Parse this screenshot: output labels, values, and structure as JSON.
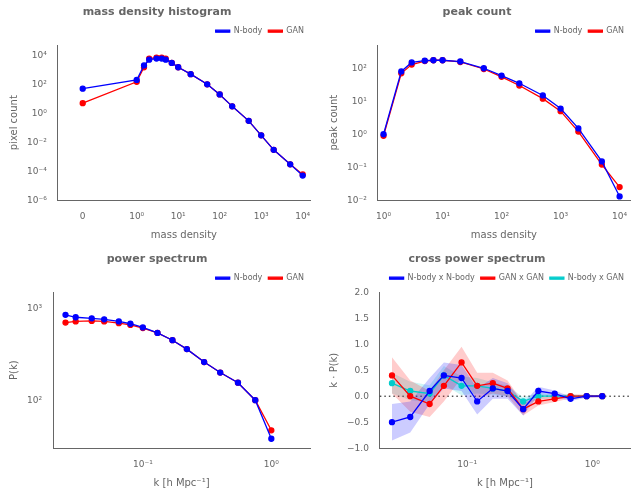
{
  "chart_data": [
    {
      "type": "line",
      "title": "mass density histogram",
      "x_label": "mass density",
      "y_label": "pixel count",
      "log": true,
      "grid": false,
      "legend": "upper right",
      "x": [
        0,
        1.0,
        1.5,
        2.0,
        3.0,
        4.0,
        5.0,
        7.0,
        10.0,
        20.0,
        50.0,
        100.0,
        200.0,
        500.0,
        1000.0,
        2000.0,
        5000.0,
        10000.0
      ],
      "series": [
        {
          "name": "N-body",
          "color": "#0000ff",
          "marker": "circle",
          "line_style": "solid",
          "values": [
            50.0,
            200.0,
            2000.0,
            5000.0,
            6000.0,
            6000.0,
            5000.0,
            3000.0,
            1500.0,
            500.0,
            100.0,
            20.0,
            3.0,
            0.3,
            0.03,
            0.003,
            0.0003,
            5e-05
          ]
        },
        {
          "name": "GAN",
          "color": "#ff0000",
          "marker": "circle",
          "line_style": "solid",
          "values": [
            5.0,
            150.0,
            1500.0,
            6000.0,
            7000.0,
            7000.0,
            6000.0,
            3000.0,
            1500.0,
            500.0,
            100.0,
            20.0,
            3.0,
            0.3,
            0.03,
            0.003,
            0.0003,
            6e-05
          ]
        }
      ],
      "xlim": [
        -0.3,
        15000
      ],
      "xticks": [
        {
          "value": 0,
          "label": "0"
        },
        {
          "value": 1,
          "label": "10⁰"
        },
        {
          "value": 10,
          "label": "10¹"
        },
        {
          "value": 100,
          "label": "10²"
        },
        {
          "value": 1000,
          "label": "10³"
        },
        {
          "value": 10000,
          "label": "10⁴"
        }
      ],
      "ylim": [
        1e-06,
        50000
      ],
      "yticks": [
        {
          "value": 1e-06,
          "label": "10⁻⁶"
        },
        {
          "value": 0.0001,
          "label": "10⁻⁴"
        },
        {
          "value": 0.01,
          "label": "10⁻²"
        },
        {
          "value": 1,
          "label": "10⁰"
        },
        {
          "value": 100,
          "label": "10²"
        },
        {
          "value": 10000,
          "label": "10⁴"
        }
      ]
    },
    {
      "type": "line",
      "title": "peak count",
      "x_label": "mass density",
      "y_label": "peak count",
      "log": true,
      "grid": false,
      "legend": "upper right",
      "x": [
        1.0,
        2.0,
        3.0,
        5.0,
        7.0,
        10.0,
        20.0,
        50.0,
        100.0,
        200.0,
        500.0,
        1000.0,
        2000.0,
        5000.0,
        10000.0
      ],
      "series": [
        {
          "name": "N-body",
          "color": "#0000ff",
          "marker": "circle",
          "line_style": "solid",
          "values": [
            1.0,
            80.0,
            150.0,
            170.0,
            175.0,
            175.0,
            160.0,
            100.0,
            60.0,
            35.0,
            15.0,
            6.0,
            1.5,
            0.15,
            0.013
          ]
        },
        {
          "name": "GAN",
          "color": "#ff0000",
          "marker": "circle",
          "line_style": "solid",
          "values": [
            0.9,
            70.0,
            130.0,
            165.0,
            175.0,
            175.0,
            155.0,
            95.0,
            55.0,
            30.0,
            12.0,
            5.0,
            1.2,
            0.12,
            0.025
          ]
        }
      ],
      "xlim": [
        0.8,
        15000
      ],
      "xticks": [
        {
          "value": 1,
          "label": "10⁰"
        },
        {
          "value": 10,
          "label": "10¹"
        },
        {
          "value": 100,
          "label": "10²"
        },
        {
          "value": 1000,
          "label": "10³"
        },
        {
          "value": 10000,
          "label": "10⁴"
        }
      ],
      "ylim": [
        0.01,
        500
      ],
      "yticks": [
        {
          "value": 0.01,
          "label": "10⁻²"
        },
        {
          "value": 0.1,
          "label": "10⁻¹"
        },
        {
          "value": 1,
          "label": "10⁰"
        },
        {
          "value": 10,
          "label": "10¹"
        },
        {
          "value": 100,
          "label": "10²"
        }
      ]
    },
    {
      "type": "line",
      "title": "power spectrum",
      "x_label": "k [h Mpc⁻¹]",
      "y_label": "P(k)",
      "log": true,
      "grid": false,
      "legend": "upper right",
      "x": [
        0.025,
        0.03,
        0.04,
        0.05,
        0.065,
        0.08,
        0.1,
        0.13,
        0.17,
        0.22,
        0.3,
        0.4,
        0.55,
        0.75,
        1.0
      ],
      "series": [
        {
          "name": "N-body",
          "color": "#0000ff",
          "marker": "circle",
          "line_style": "solid",
          "values": [
            850.0,
            800.0,
            780.0,
            760.0,
            720.0,
            680.0,
            620.0,
            540.0,
            450.0,
            360.0,
            260.0,
            200.0,
            155.0,
            100.0,
            38.0
          ]
        },
        {
          "name": "GAN",
          "color": "#ff0000",
          "marker": "circle",
          "line_style": "solid",
          "values": [
            700.0,
            720.0,
            730.0,
            720.0,
            690.0,
            660.0,
            610.0,
            540.0,
            450.0,
            360.0,
            260.0,
            200.0,
            155.0,
            100.0,
            47.0
          ]
        }
      ],
      "xlim": [
        0.02,
        2.0
      ],
      "xticks": [
        {
          "value": 0.1,
          "label": "10⁻¹"
        },
        {
          "value": 1,
          "label": "10⁰"
        }
      ],
      "ylim": [
        30,
        1500
      ],
      "yticks": [
        {
          "value": 100,
          "label": "10²"
        },
        {
          "value": 1000,
          "label": "10³"
        }
      ]
    },
    {
      "type": "line",
      "title": "cross power spectrum",
      "x_label": "k [h Mpc⁻¹]",
      "y_label": "k · P(k)",
      "log": "x",
      "grid": false,
      "legend": "upper right",
      "x": [
        0.025,
        0.035,
        0.05,
        0.065,
        0.09,
        0.12,
        0.16,
        0.21,
        0.28,
        0.37,
        0.5,
        0.67,
        0.9,
        1.2
      ],
      "series": [
        {
          "name": "N-body x N-body",
          "color": "#0000ff",
          "marker": "circle",
          "line_style": "solid",
          "values": [
            -0.5,
            -0.4,
            0.1,
            0.4,
            0.35,
            -0.1,
            0.15,
            0.1,
            -0.25,
            0.1,
            0.05,
            -0.05,
            0.0,
            0.0
          ],
          "band_lower": [
            -0.85,
            -0.7,
            -0.15,
            0.15,
            0.1,
            -0.35,
            -0.05,
            -0.05,
            -0.37,
            0.02,
            -0.01,
            -0.09,
            -0.03,
            -0.02
          ],
          "band_upper": [
            -0.15,
            -0.1,
            0.35,
            0.65,
            0.6,
            0.15,
            0.35,
            0.25,
            -0.13,
            0.18,
            0.11,
            -0.01,
            0.03,
            0.02
          ]
        },
        {
          "name": "GAN x GAN",
          "color": "#ff0000",
          "marker": "circle",
          "line_style": "solid",
          "values": [
            0.4,
            0.0,
            -0.15,
            0.2,
            0.65,
            0.2,
            0.25,
            0.15,
            -0.25,
            -0.1,
            -0.05,
            0.0,
            0.0,
            0.0
          ],
          "band_lower": [
            0.05,
            -0.3,
            -0.4,
            -0.1,
            0.35,
            -0.05,
            0.05,
            0.0,
            -0.37,
            -0.18,
            -0.11,
            -0.04,
            -0.03,
            -0.02
          ],
          "band_upper": [
            0.75,
            0.3,
            0.1,
            0.5,
            0.95,
            0.45,
            0.45,
            0.3,
            -0.13,
            -0.02,
            0.01,
            0.04,
            0.03,
            0.02
          ]
        },
        {
          "name": "N-body x GAN",
          "color": "#00cccc",
          "marker": "circle",
          "line_style": "solid",
          "values": [
            0.25,
            0.1,
            0.05,
            0.4,
            0.2,
            0.2,
            0.15,
            0.1,
            -0.1,
            0.0,
            0.0,
            0.0,
            0.0,
            0.0
          ],
          "band_lower": [
            0.05,
            -0.08,
            -0.11,
            0.22,
            0.02,
            0.05,
            0.03,
            0.0,
            -0.18,
            -0.06,
            -0.04,
            -0.03,
            -0.02,
            -0.015
          ],
          "band_upper": [
            0.45,
            0.28,
            0.21,
            0.58,
            0.38,
            0.35,
            0.27,
            0.2,
            -0.02,
            0.06,
            0.04,
            0.03,
            0.02,
            0.015
          ]
        }
      ],
      "hline": {
        "y": 0,
        "color": "#000000",
        "line_style": "dotted"
      },
      "xlim": [
        0.02,
        2.0
      ],
      "xticks": [
        {
          "value": 0.1,
          "label": "10⁻¹"
        },
        {
          "value": 1,
          "label": "10⁰"
        }
      ],
      "ylim": [
        -1.0,
        2.0
      ],
      "yticks": [
        {
          "value": -1.0,
          "label": "−1.0"
        },
        {
          "value": -0.5,
          "label": "−0.5"
        },
        {
          "value": 0.0,
          "label": "0.0"
        },
        {
          "value": 0.5,
          "label": "0.5"
        },
        {
          "value": 1.0,
          "label": "1.0"
        },
        {
          "value": 1.5,
          "label": "1.5"
        },
        {
          "value": 2.0,
          "label": "2.0"
        }
      ]
    }
  ]
}
